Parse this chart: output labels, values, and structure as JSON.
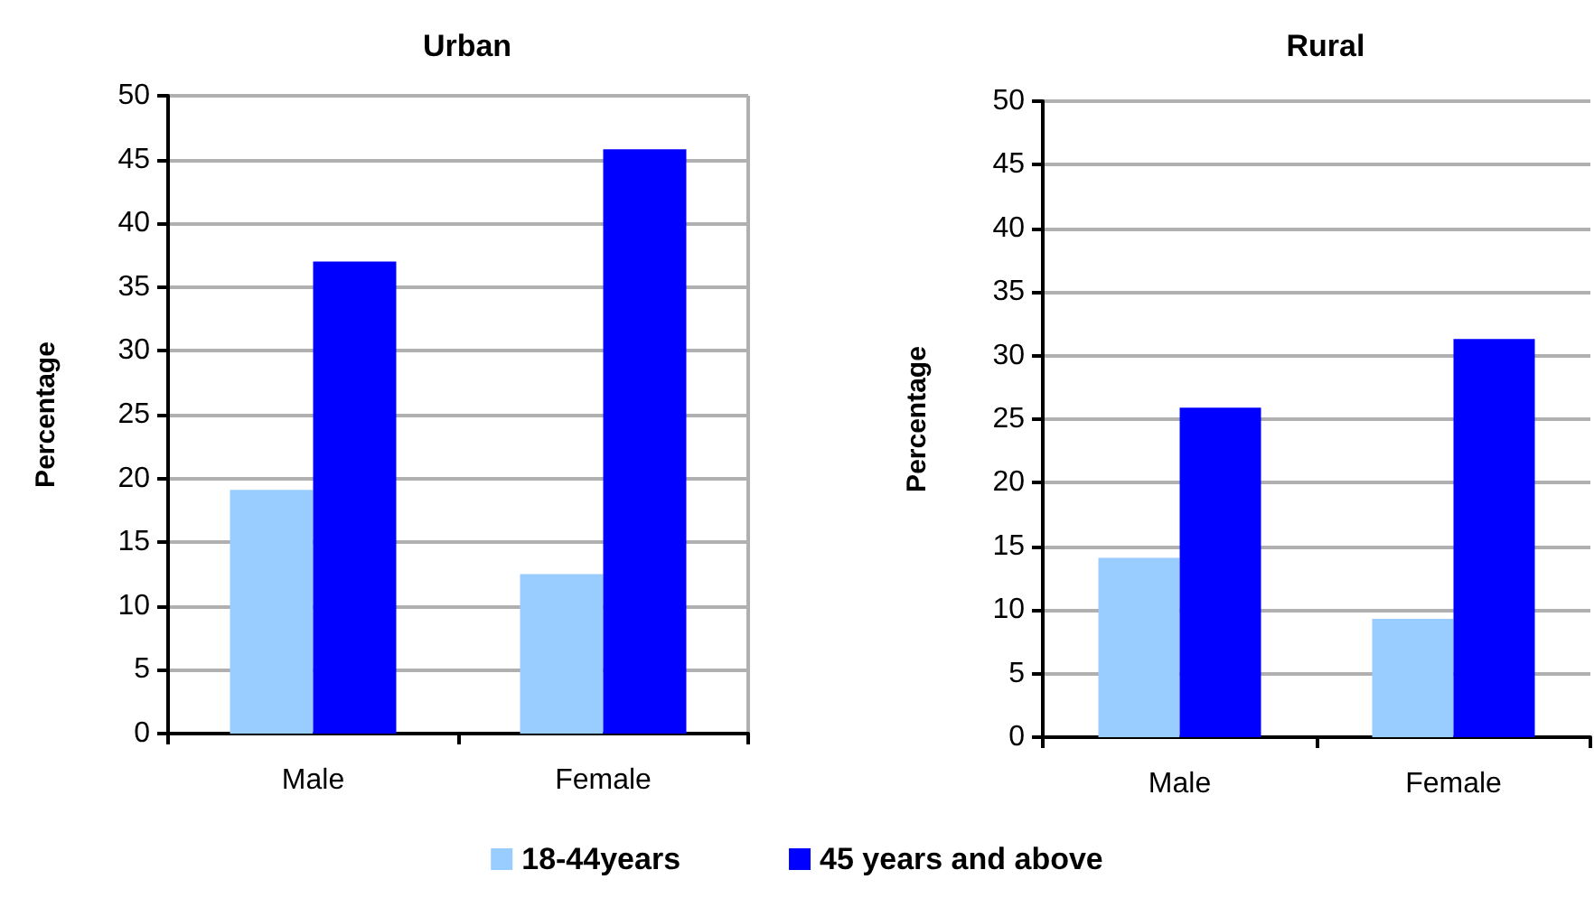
{
  "chart_data": [
    {
      "type": "bar",
      "title": "Urban",
      "ylabel": "Percentage",
      "categories": [
        "Male",
        "Female"
      ],
      "series": [
        {
          "name": "18-44years",
          "color": "#99ccff",
          "values": [
            19.1,
            12.5
          ]
        },
        {
          "name": "45 years and above",
          "color": "#0000ff",
          "values": [
            37,
            45.8
          ]
        }
      ],
      "ylim": [
        0,
        50
      ],
      "yticks": [
        0,
        5,
        10,
        15,
        20,
        25,
        30,
        35,
        40,
        45,
        50
      ],
      "grid": "y",
      "legend": "bottom"
    },
    {
      "type": "bar",
      "title": "Rural",
      "ylabel": "Percentage",
      "categories": [
        "Male",
        "Female"
      ],
      "series": [
        {
          "color": "#99ccff",
          "values": [
            14.1,
            9.3
          ]
        },
        {
          "color": "#0000ff",
          "values": [
            25.9,
            31.3
          ]
        }
      ],
      "ylim": [
        0,
        50
      ],
      "yticks": [
        0,
        5,
        10,
        15,
        20,
        25,
        30,
        35,
        40,
        45,
        50
      ],
      "grid": "y"
    }
  ]
}
